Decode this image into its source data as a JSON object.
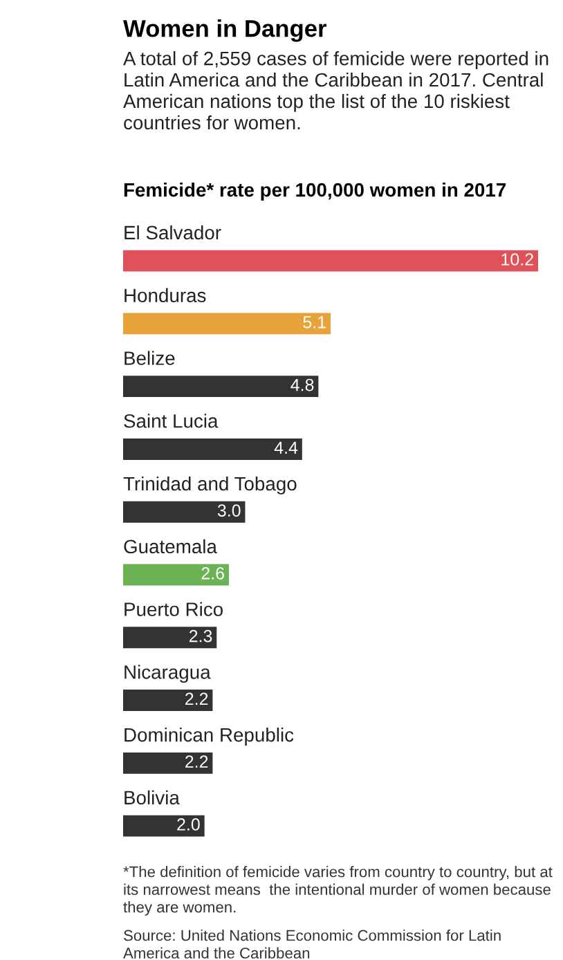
{
  "chart_data": {
    "type": "bar",
    "orientation": "horizontal",
    "title": "Women in Danger",
    "subtitle": "A total of 2,559 cases of femicide were reported in Latin America and the Caribbean in 2017. Central American nations top the list of the 10 riskiest countries for women.",
    "xlabel": "Femicide* rate per 100,000 women in 2017",
    "categories": [
      "El Salvador",
      "Honduras",
      "Belize",
      "Saint Lucia",
      "Trinidad and Tobago",
      "Guatemala",
      "Puerto Rico",
      "Nicaragua",
      "Dominican Republic",
      "Bolivia"
    ],
    "values": [
      10.2,
      5.1,
      4.8,
      4.4,
      3.0,
      2.6,
      2.3,
      2.2,
      2.2,
      2.0
    ],
    "value_labels": [
      "10.2",
      "5.1",
      "4.8",
      "4.4",
      "3.0",
      "2.6",
      "2.3",
      "2.2",
      "2.2",
      "2.0"
    ],
    "colors": [
      "#e0525a",
      "#e8a23a",
      "#333333",
      "#333333",
      "#333333",
      "#6cb356",
      "#333333",
      "#333333",
      "#333333",
      "#333333"
    ],
    "annotations": [
      "*The definition of femicide varies from country to country, but at its narrowest means  the intentional murder of women because they are women.",
      "Source: United Nations Economic Commission for Latin America and the Caribbean"
    ],
    "legend": false
  }
}
